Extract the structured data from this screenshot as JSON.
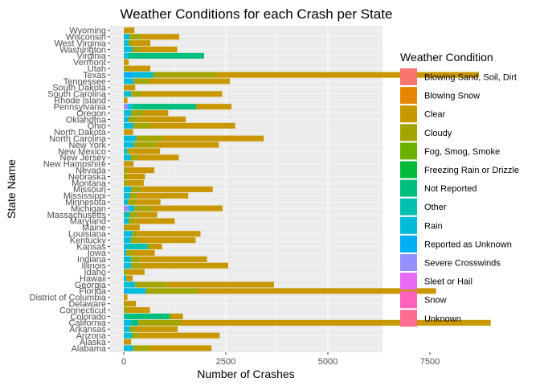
{
  "chart_data": {
    "type": "bar",
    "orientation": "horizontal",
    "stacked": true,
    "title": "Weather Conditions for each Crash per State",
    "xlabel": "Number of Crashes",
    "ylabel": "State Name",
    "xlim": [
      0,
      9200
    ],
    "x_ticks": [
      0,
      2500,
      5000,
      7500
    ],
    "x_tick_labels": [
      "0",
      "2500",
      "5000",
      "7500"
    ],
    "grid": true,
    "legend_position": "right",
    "legend_title": "Weather Condition",
    "colors": {
      "panel_background": "#EBEBEB",
      "grid": "#FFFFFF",
      "text": "#4D4D4D"
    },
    "series": [
      {
        "name": "Blowing Sand, Soil, Dirt",
        "color": "#F8766D"
      },
      {
        "name": "Blowing Snow",
        "color": "#E58700"
      },
      {
        "name": "Clear",
        "color": "#C99800"
      },
      {
        "name": "Cloudy",
        "color": "#A3A500"
      },
      {
        "name": "Fog, Smog, Smoke",
        "color": "#6BB100"
      },
      {
        "name": "Freezing Rain or Drizzle",
        "color": "#00BA38"
      },
      {
        "name": "Not Reported",
        "color": "#00BF7D"
      },
      {
        "name": "Other",
        "color": "#00C0AF"
      },
      {
        "name": "Rain",
        "color": "#00BCD8"
      },
      {
        "name": "Reported as Unknown",
        "color": "#00B0F6"
      },
      {
        "name": "Severe Crosswinds",
        "color": "#9590FF"
      },
      {
        "name": "Sleet or Hail",
        "color": "#E76BF3"
      },
      {
        "name": "Snow",
        "color": "#FF62BC"
      },
      {
        "name": "Unknown",
        "color": "#FF6C91"
      }
    ],
    "states": [
      {
        "name": "Alabama",
        "segments": {
          "Rain": 230,
          "Cloudy": 420,
          "Clear": 1500
        }
      },
      {
        "name": "Alaska",
        "segments": {
          "Clear": 180
        }
      },
      {
        "name": "Arizona",
        "segments": {
          "Rain": 150,
          "Other": 60,
          "Cloudy": 160,
          "Clear": 1980
        }
      },
      {
        "name": "Arkansas",
        "segments": {
          "Rain": 150,
          "Cloudy": 150,
          "Clear": 1020
        }
      },
      {
        "name": "California",
        "segments": {
          "Rain": 200,
          "Not Reported": 160,
          "Cloudy": 1050,
          "Clear": 7580
        }
      },
      {
        "name": "Colorado",
        "segments": {
          "Rain": 40,
          "Not Reported": 1080,
          "Cloudy": 80,
          "Clear": 250
        }
      },
      {
        "name": "Connecticut",
        "segments": {
          "Cloudy": 80,
          "Clear": 560
        }
      },
      {
        "name": "Delaware",
        "segments": {
          "Cloudy": 60,
          "Clear": 240
        }
      },
      {
        "name": "District of Columbia",
        "segments": {
          "Clear": 90
        }
      },
      {
        "name": "Florida",
        "segments": {
          "Reported as Unknown": 120,
          "Rain": 420,
          "Cloudy": 1280,
          "Clear": 5830
        }
      },
      {
        "name": "Georgia",
        "segments": {
          "Rain": 280,
          "Cloudy": 780,
          "Clear": 2620
        }
      },
      {
        "name": "Hawaii",
        "segments": {
          "Rain": 60,
          "Clear": 160
        }
      },
      {
        "name": "Idaho",
        "segments": {
          "Cloudy": 90,
          "Clear": 420
        }
      },
      {
        "name": "Illinois",
        "segments": {
          "Rain": 180,
          "Cloudy": 230,
          "Clear": 2150
        }
      },
      {
        "name": "Indiana",
        "segments": {
          "Rain": 180,
          "Cloudy": 220,
          "Clear": 1640
        }
      },
      {
        "name": "Iowa",
        "segments": {
          "Rain": 60,
          "Cloudy": 150,
          "Clear": 550
        }
      },
      {
        "name": "Kansas",
        "segments": {
          "Rain": 100,
          "Other": 480,
          "Cloudy": 120,
          "Clear": 240
        }
      },
      {
        "name": "Kentucky",
        "segments": {
          "Rain": 170,
          "Cloudy": 170,
          "Clear": 1420
        }
      },
      {
        "name": "Louisiana",
        "segments": {
          "Rain": 210,
          "Cloudy": 110,
          "Clear": 1560
        }
      },
      {
        "name": "Maine",
        "segments": {
          "Cloudy": 90,
          "Clear": 300
        }
      },
      {
        "name": "Maryland",
        "segments": {
          "Rain": 120,
          "Cloudy": 160,
          "Clear": 970
        }
      },
      {
        "name": "Massachusetts",
        "segments": {
          "Other": 150,
          "Cloudy": 180,
          "Clear": 490
        }
      },
      {
        "name": "Michigan",
        "segments": {
          "Severe Crosswinds": 120,
          "Rain": 140,
          "Cloudy": 410,
          "Clear": 1750
        }
      },
      {
        "name": "Minnesota",
        "segments": {
          "Rain": 100,
          "Cloudy": 200,
          "Clear": 600
        }
      },
      {
        "name": "Mississippi",
        "segments": {
          "Rain": 150,
          "Cloudy": 150,
          "Clear": 1280
        }
      },
      {
        "name": "Missouri",
        "segments": {
          "Rain": 180,
          "Cloudy": 240,
          "Clear": 1760
        }
      },
      {
        "name": "Montana",
        "segments": {
          "Cloudy": 90,
          "Clear": 400
        }
      },
      {
        "name": "Nebraska",
        "segments": {
          "Cloudy": 90,
          "Clear": 430
        }
      },
      {
        "name": "Nevada",
        "segments": {
          "Cloudy": 80,
          "Clear": 670
        }
      },
      {
        "name": "New Hampshire",
        "segments": {
          "Clear": 240
        }
      },
      {
        "name": "New Jersey",
        "segments": {
          "Rain": 170,
          "Cloudy": 170,
          "Clear": 1010
        }
      },
      {
        "name": "New Mexico",
        "segments": {
          "Rain": 80,
          "Cloudy": 90,
          "Clear": 720
        }
      },
      {
        "name": "New York",
        "segments": {
          "Rain": 250,
          "Cloudy": 540,
          "Clear": 1540
        }
      },
      {
        "name": "North Carolina",
        "segments": {
          "Rain": 300,
          "Cloudy": 650,
          "Clear": 2480
        }
      },
      {
        "name": "North Dakota",
        "segments": {
          "Clear": 230
        }
      },
      {
        "name": "Ohio",
        "segments": {
          "Rain": 240,
          "Cloudy": 420,
          "Clear": 2070
        }
      },
      {
        "name": "Oklahoma",
        "segments": {
          "Rain": 120,
          "Cloudy": 230,
          "Clear": 1170
        }
      },
      {
        "name": "Oregon",
        "segments": {
          "Rain": 180,
          "Cloudy": 340,
          "Clear": 570
        }
      },
      {
        "name": "Pennsylvania",
        "segments": {
          "Severe Crosswinds": 100,
          "Rain": 120,
          "Not Reported": 1560,
          "Clear": 860
        }
      },
      {
        "name": "Rhode Island",
        "segments": {
          "Clear": 90
        }
      },
      {
        "name": "South Carolina",
        "segments": {
          "Rain": 180,
          "Cloudy": 260,
          "Clear": 1970
        }
      },
      {
        "name": "South Dakota",
        "segments": {
          "Clear": 280
        }
      },
      {
        "name": "Tennessee",
        "segments": {
          "Rain": 240,
          "Cloudy": 400,
          "Clear": 1960
        }
      },
      {
        "name": "Texas",
        "segments": {
          "Reported as Unknown": 250,
          "Rain": 380,
          "Other": 100,
          "Cloudy": 1550,
          "Clear": 6420
        }
      },
      {
        "name": "Utah",
        "segments": {
          "Cloudy": 80,
          "Clear": 570
        }
      },
      {
        "name": "Vermont",
        "segments": {
          "Clear": 120
        }
      },
      {
        "name": "Virginia",
        "segments": {
          "Rain": 120,
          "Not Reported": 1850
        }
      },
      {
        "name": "Washington",
        "segments": {
          "Rain": 210,
          "Cloudy": 230,
          "Clear": 870
        }
      },
      {
        "name": "West Virginia",
        "segments": {
          "Rain": 120,
          "Cloudy": 100,
          "Clear": 430
        }
      },
      {
        "name": "Wisconsin",
        "segments": {
          "Rain": 140,
          "Cloudy": 300,
          "Clear": 920
        }
      },
      {
        "name": "Wyoming",
        "segments": {
          "Clear": 260
        }
      }
    ]
  }
}
